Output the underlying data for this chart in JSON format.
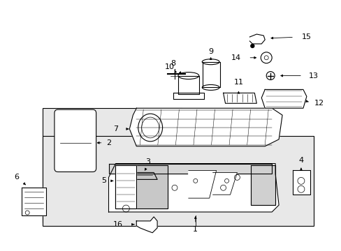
{
  "bg_color": "#ffffff",
  "line_color": "#000000",
  "gray_fill": "#e8e8e8",
  "font_size": 8,
  "fig_width": 4.89,
  "fig_height": 3.6,
  "dpi": 100
}
